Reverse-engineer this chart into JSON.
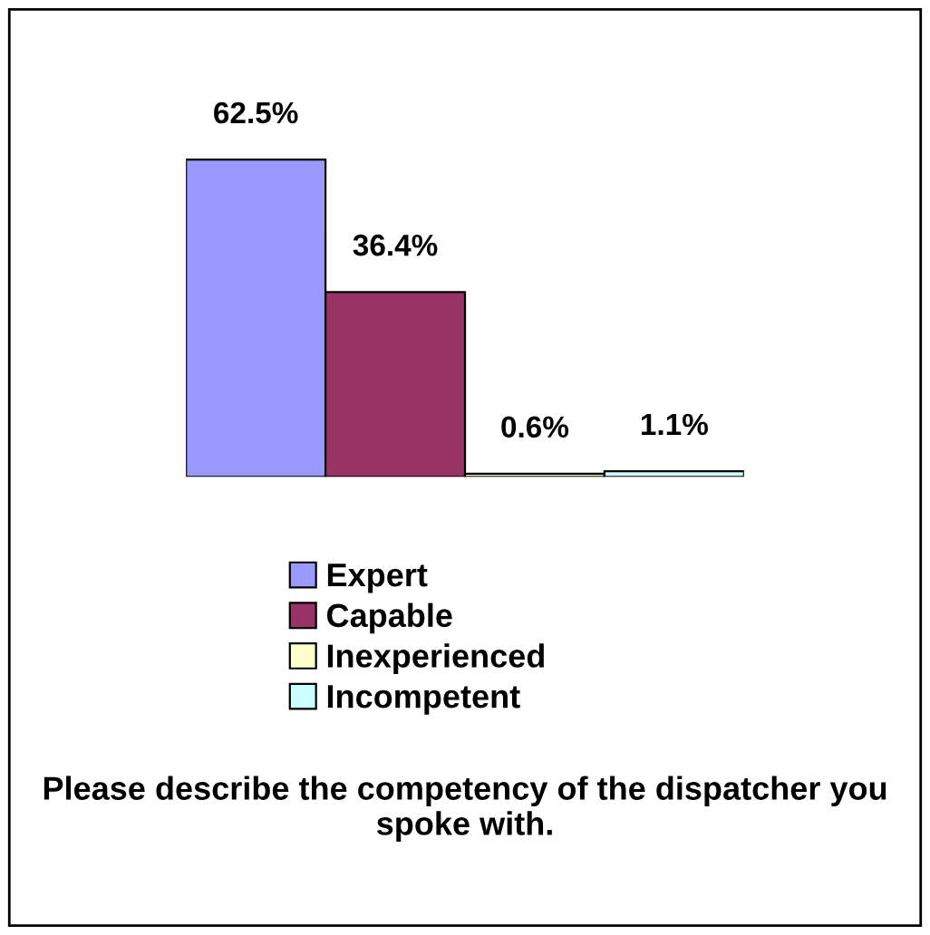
{
  "chart_data": {
    "type": "bar",
    "title": "Please describe the competency of the dispatcher you spoke with.",
    "categories": [
      null
    ],
    "series": [
      {
        "name": "Expert",
        "color": "#9999ff",
        "values": [
          62.5
        ],
        "value_labels": [
          "62.5%"
        ]
      },
      {
        "name": "Capable",
        "color": "#993366",
        "values": [
          36.4
        ],
        "value_labels": [
          "36.4%"
        ]
      },
      {
        "name": "Inexperienced",
        "color": "#ffffcc",
        "values": [
          0.6
        ],
        "value_labels": [
          "0.6%"
        ]
      },
      {
        "name": "Incompetent",
        "color": "#ccffff",
        "values": [
          1.1
        ],
        "value_labels": [
          "1.1%"
        ]
      }
    ],
    "legend": "bottom",
    "grid": false
  }
}
